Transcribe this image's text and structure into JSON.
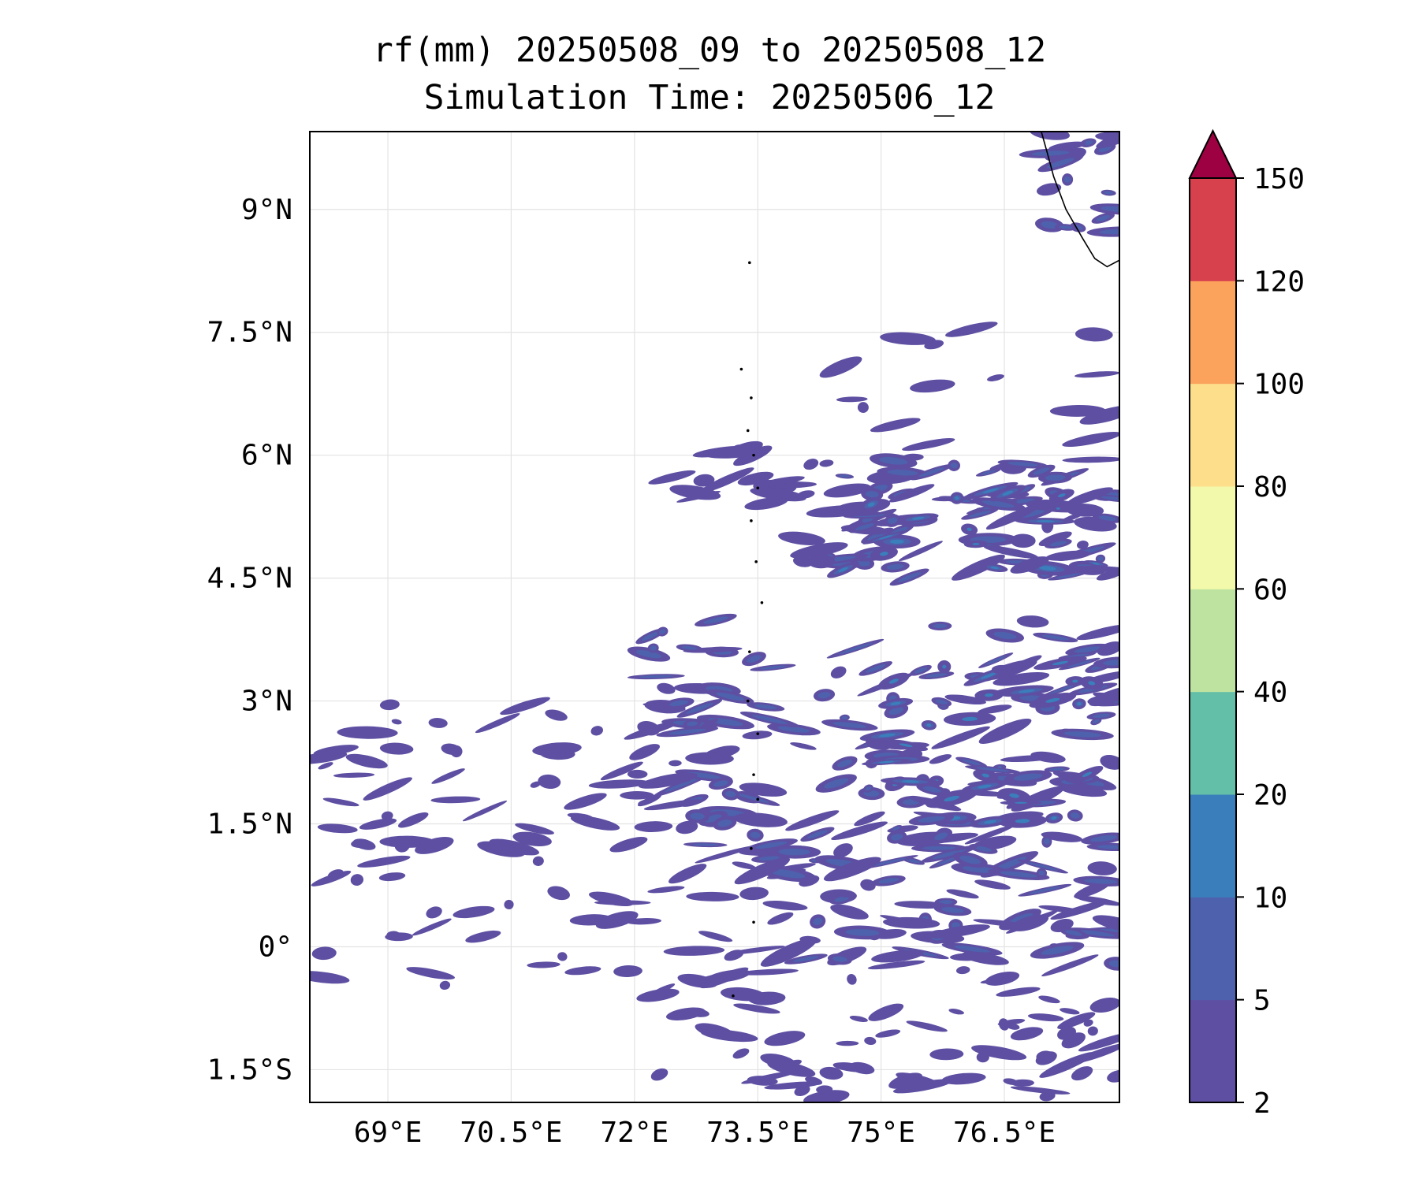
{
  "title": {
    "line1": "rf(mm) 20250508_09 to 20250508_12",
    "line2": "Simulation Time: 20250506_12"
  },
  "map": {
    "extent": {
      "lon_min": 68.05,
      "lon_max": 77.9,
      "lat_min": -1.9,
      "lat_max": 9.95
    },
    "gridlines": true,
    "x_ticks": [
      {
        "value": 69.0,
        "label": "69°E"
      },
      {
        "value": 70.5,
        "label": "70.5°E"
      },
      {
        "value": 72.0,
        "label": "72°E"
      },
      {
        "value": 73.5,
        "label": "73.5°E"
      },
      {
        "value": 75.0,
        "label": "75°E"
      },
      {
        "value": 76.5,
        "label": "76.5°E"
      }
    ],
    "y_ticks": [
      {
        "value": 9.0,
        "label": "9°N"
      },
      {
        "value": 7.5,
        "label": "7.5°N"
      },
      {
        "value": 6.0,
        "label": "6°N"
      },
      {
        "value": 4.5,
        "label": "4.5°N"
      },
      {
        "value": 3.0,
        "label": "3°N"
      },
      {
        "value": 1.5,
        "label": "1.5°N"
      },
      {
        "value": 0.0,
        "label": "0°"
      },
      {
        "value": -1.5,
        "label": "1.5°S"
      }
    ],
    "coastline": [
      [
        76.95,
        9.95
      ],
      [
        77.02,
        9.7
      ],
      [
        77.1,
        9.4
      ],
      [
        77.25,
        9.0
      ],
      [
        77.45,
        8.65
      ],
      [
        77.6,
        8.4
      ],
      [
        77.75,
        8.3
      ],
      [
        77.9,
        8.38
      ]
    ],
    "islands": [
      [
        73.4,
        8.35
      ],
      [
        73.3,
        7.05
      ],
      [
        73.42,
        6.7
      ],
      [
        73.38,
        6.3
      ],
      [
        73.45,
        6.0
      ],
      [
        73.5,
        5.6
      ],
      [
        73.42,
        5.2
      ],
      [
        73.48,
        4.7
      ],
      [
        73.55,
        4.2
      ],
      [
        73.4,
        3.6
      ],
      [
        73.38,
        3.0
      ],
      [
        73.5,
        2.6
      ],
      [
        73.45,
        2.1
      ],
      [
        73.5,
        1.8
      ],
      [
        73.42,
        1.2
      ],
      [
        73.45,
        0.3
      ],
      [
        73.2,
        -0.6
      ]
    ]
  },
  "rain_bands": [
    {
      "lon0": 72.2,
      "lon1": 74.5,
      "lat0": 5.4,
      "lat1": 6.1,
      "count": 18,
      "level": 0
    },
    {
      "lon0": 74.0,
      "lon1": 77.9,
      "lat0": 4.5,
      "lat1": 6.0,
      "count": 70,
      "level": 1
    },
    {
      "lon0": 74.5,
      "lon1": 77.9,
      "lat0": 4.6,
      "lat1": 5.6,
      "count": 35,
      "level": 2
    },
    {
      "lon0": 68.1,
      "lon1": 72.5,
      "lat0": 1.3,
      "lat1": 3.0,
      "count": 45,
      "level": 0
    },
    {
      "lon0": 72.0,
      "lon1": 77.9,
      "lat0": 1.2,
      "lat1": 4.0,
      "count": 120,
      "level": 1
    },
    {
      "lon0": 74.8,
      "lon1": 77.9,
      "lat0": 1.5,
      "lat1": 3.5,
      "count": 60,
      "level": 2
    },
    {
      "lon0": 73.5,
      "lon1": 77.9,
      "lat0": -0.3,
      "lat1": 1.4,
      "count": 90,
      "level": 1
    },
    {
      "lon0": 68.1,
      "lon1": 73.8,
      "lat0": -0.6,
      "lat1": 1.3,
      "count": 50,
      "level": 0
    },
    {
      "lon0": 72.0,
      "lon1": 77.9,
      "lat0": -1.9,
      "lat1": -0.3,
      "count": 70,
      "level": 0
    },
    {
      "lon0": 74.5,
      "lon1": 77.9,
      "lat0": 6.0,
      "lat1": 7.6,
      "count": 15,
      "level": 0
    },
    {
      "lon0": 77.0,
      "lon1": 77.9,
      "lat0": 8.6,
      "lat1": 9.95,
      "count": 20,
      "level": 1
    }
  ],
  "colorbar": {
    "boundaries": [
      2,
      5,
      10,
      20,
      40,
      60,
      80,
      100,
      120,
      150
    ],
    "labels": [
      "2",
      "5",
      "10",
      "20",
      "40",
      "60",
      "80",
      "100",
      "120",
      "150"
    ],
    "colors": [
      "#5e4fa2",
      "#4e61ad",
      "#3a7fbc",
      "#64bfa8",
      "#bee3a0",
      "#f2f9aa",
      "#fddf8b",
      "#fba25c",
      "#d7414e"
    ],
    "extend_color": "#9e0142",
    "extend": "max"
  }
}
